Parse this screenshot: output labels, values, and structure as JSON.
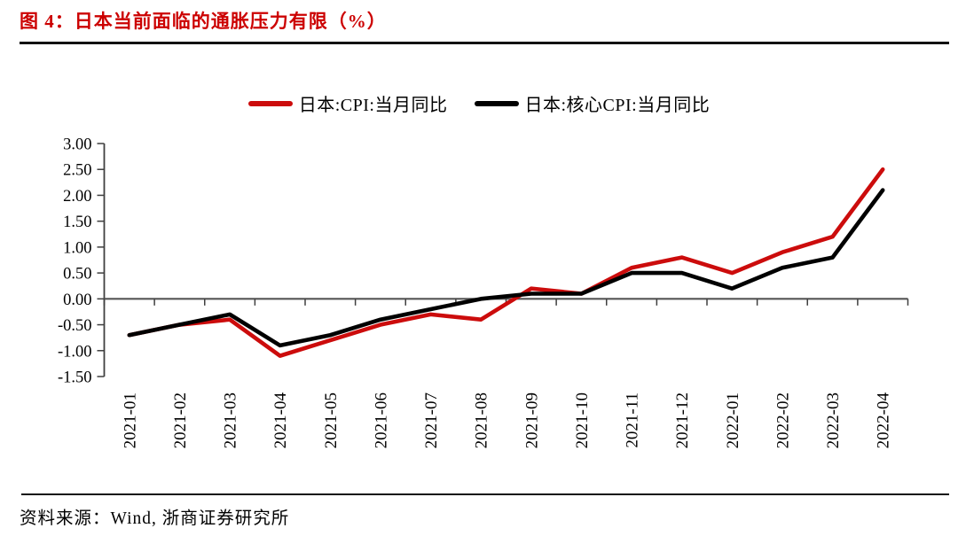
{
  "figure": {
    "title": "图 4：日本当前面临的通胀压力有限（%）",
    "source": "资料来源：Wind, 浙商证券研究所"
  },
  "colors": {
    "title_red": "#cc0000",
    "series_red": "#cc0c0c",
    "series_black": "#000000",
    "axis": "#3f3f3f",
    "zero_line": "#555555",
    "text": "#000000"
  },
  "chart_data": {
    "type": "line",
    "title": "",
    "xlabel": "",
    "ylabel": "",
    "categories": [
      "2021-01",
      "2021-02",
      "2021-03",
      "2021-04",
      "2021-05",
      "2021-06",
      "2021-07",
      "2021-08",
      "2021-09",
      "2021-10",
      "2021-11",
      "2021-12",
      "2022-01",
      "2022-02",
      "2022-03",
      "2022-04"
    ],
    "series": [
      {
        "name": "日本:CPI:当月同比",
        "color": "#cc0c0c",
        "values": [
          -0.7,
          -0.5,
          -0.4,
          -1.1,
          -0.8,
          -0.5,
          -0.3,
          -0.4,
          0.2,
          0.1,
          0.6,
          0.8,
          0.5,
          0.9,
          1.2,
          2.5
        ]
      },
      {
        "name": "日本:核心CPI:当月同比",
        "color": "#000000",
        "values": [
          -0.7,
          -0.5,
          -0.3,
          -0.9,
          -0.7,
          -0.4,
          -0.2,
          0.0,
          0.1,
          0.1,
          0.5,
          0.5,
          0.2,
          0.6,
          0.8,
          2.1
        ]
      }
    ],
    "ylim": [
      -1.5,
      3.0
    ],
    "ytick_step": 0.5,
    "y_tick_labels": [
      "3.00",
      "2.50",
      "2.00",
      "1.50",
      "1.00",
      "0.50",
      "0.00",
      "-0.50",
      "-1.00",
      "-1.50"
    ],
    "grid": false,
    "legend_position": "top-center"
  }
}
